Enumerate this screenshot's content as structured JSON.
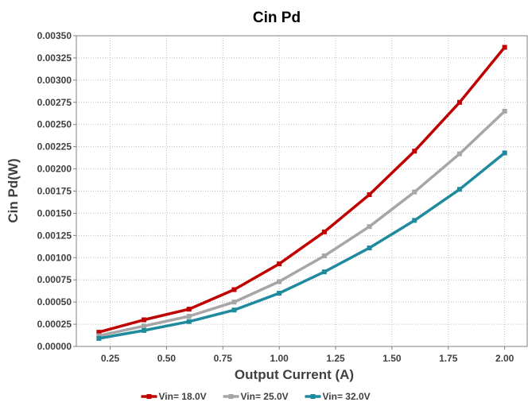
{
  "chart_data": {
    "type": "line",
    "title": "Cin Pd",
    "xlabel": "Output Current (A)",
    "ylabel": "Cin Pd(W)",
    "xlim": [
      0.1,
      2.1
    ],
    "ylim": [
      0,
      0.0035
    ],
    "x_ticks": [
      "0.25",
      "0.50",
      "0.75",
      "1.00",
      "1.25",
      "1.50",
      "1.75",
      "2.00"
    ],
    "y_ticks": [
      "0.00000",
      "0.00025",
      "0.00050",
      "0.00075",
      "0.00100",
      "0.00125",
      "0.00150",
      "0.00175",
      "0.00200",
      "0.00225",
      "0.00250",
      "0.00275",
      "0.00300",
      "0.00325",
      "0.00350"
    ],
    "grid": true,
    "legend_position": "bottom",
    "x": [
      0.2,
      0.4,
      0.6,
      0.8,
      1.0,
      1.2,
      1.4,
      1.6,
      1.8,
      2.0
    ],
    "series": [
      {
        "name": "Vin= 18.0V",
        "color": "#c00000",
        "values": [
          0.00016,
          0.0003,
          0.00042,
          0.00064,
          0.00093,
          0.00129,
          0.00171,
          0.0022,
          0.00275,
          0.00337
        ]
      },
      {
        "name": "Vin= 25.0V",
        "color": "#a6a6a6",
        "values": [
          0.00012,
          0.00023,
          0.00034,
          0.0005,
          0.00073,
          0.00102,
          0.00135,
          0.00174,
          0.00217,
          0.00265
        ]
      },
      {
        "name": "Vin= 32.0V",
        "color": "#1f8a9e",
        "values": [
          9e-05,
          0.00018,
          0.00028,
          0.00041,
          0.0006,
          0.00084,
          0.00111,
          0.00142,
          0.00177,
          0.00218
        ]
      }
    ]
  }
}
